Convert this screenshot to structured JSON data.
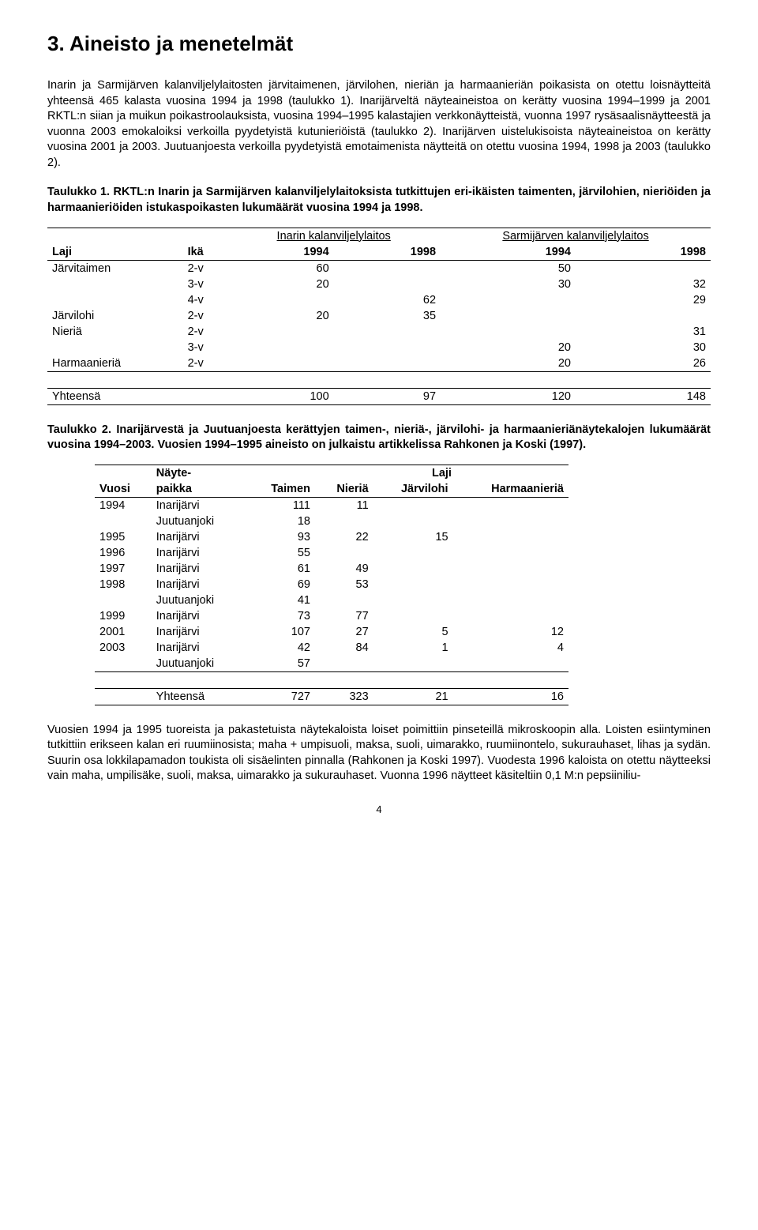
{
  "heading": "3. Aineisto ja menetelmät",
  "para1": "Inarin ja Sarmijärven kalanviljelylaitosten järvitaimenen, järvilohen, nieriän ja harmaanieriän poikasista on otettu loisnäytteitä yhteensä 465 kalasta vuosina 1994 ja 1998 (taulukko 1). Inarijärveltä näyteaineistoa on kerätty vuosina 1994–1999 ja 2001 RKTL:n siian ja muikun poikastroolauksista, vuosina 1994–1995 kalastajien verkkonäytteistä, vuonna 1997 rysäsaalisnäytteestä ja vuonna 2003 emokaloiksi verkoilla pyydetyistä kutunieriöistä (taulukko 2). Inarijärven uistelukisoista näyteaineistoa on kerätty vuosina 2001 ja 2003. Juutuanjoesta verkoilla pyydetyistä emotaimenista näytteitä on otettu vuosina 1994, 1998 ja 2003 (taulukko 2).",
  "table1_caption": "Taulukko 1. RKTL:n Inarin ja Sarmijärven kalanviljelylaitoksista tutkittujen eri-ikäisten taimenten, järvilohien, nieriöiden ja harmaanieriöiden istukaspoikasten lukumäärät vuosina 1994 ja 1998.",
  "table1": {
    "hatchery_labels": [
      "Inarin kalanviljelylaitos",
      "Sarmijärven kalanviljelylaitos"
    ],
    "col_labels": [
      "Laji",
      "Ikä",
      "1994",
      "1998",
      "1994",
      "1998"
    ],
    "rows": [
      {
        "laji": "Järvitaimen",
        "ika": "2-v",
        "v94i": "60",
        "v98i": "",
        "v94s": "50",
        "v98s": ""
      },
      {
        "laji": "",
        "ika": "3-v",
        "v94i": "20",
        "v98i": "",
        "v94s": "30",
        "v98s": "32"
      },
      {
        "laji": "",
        "ika": "4-v",
        "v94i": "",
        "v98i": "62",
        "v94s": "",
        "v98s": "29"
      },
      {
        "laji": "Järvilohi",
        "ika": "2-v",
        "v94i": "20",
        "v98i": "35",
        "v94s": "",
        "v98s": ""
      },
      {
        "laji": "Nieriä",
        "ika": "2-v",
        "v94i": "",
        "v98i": "",
        "v94s": "",
        "v98s": "31"
      },
      {
        "laji": "",
        "ika": "3-v",
        "v94i": "",
        "v98i": "",
        "v94s": "20",
        "v98s": "30"
      },
      {
        "laji": "Harmaanieriä",
        "ika": "2-v",
        "v94i": "",
        "v98i": "",
        "v94s": "20",
        "v98s": "26"
      }
    ],
    "total_label": "Yhteensä",
    "totals": {
      "v94i": "100",
      "v98i": "97",
      "v94s": "120",
      "v98s": "148"
    }
  },
  "table2_caption": "Taulukko 2. Inarijärvestä ja Juutuanjoesta kerättyjen taimen-, nieriä-, järvilohi- ja harmaanieriänäytekalojen lukumäärät vuosina 1994–2003. Vuosien 1994–1995 aineisto on julkaistu artikkelissa Rahkonen ja Koski (1997).",
  "table2": {
    "head_top": [
      "",
      "Näyte-",
      "",
      "Laji",
      "",
      ""
    ],
    "head_btm": [
      "Vuosi",
      "paikka",
      "Taimen",
      "Nieriä",
      "Järvilohi",
      "Harmaanieriä"
    ],
    "rows": [
      {
        "vuosi": "1994",
        "paikka": "Inarijärvi",
        "taimen": "111",
        "nieria": "11",
        "jl": "",
        "hm": ""
      },
      {
        "vuosi": "",
        "paikka": "Juutuanjoki",
        "taimen": "18",
        "nieria": "",
        "jl": "",
        "hm": ""
      },
      {
        "vuosi": "1995",
        "paikka": "Inarijärvi",
        "taimen": "93",
        "nieria": "22",
        "jl": "15",
        "hm": ""
      },
      {
        "vuosi": "1996",
        "paikka": "Inarijärvi",
        "taimen": "55",
        "nieria": "",
        "jl": "",
        "hm": ""
      },
      {
        "vuosi": "1997",
        "paikka": "Inarijärvi",
        "taimen": "61",
        "nieria": "49",
        "jl": "",
        "hm": ""
      },
      {
        "vuosi": "1998",
        "paikka": "Inarijärvi",
        "taimen": "69",
        "nieria": "53",
        "jl": "",
        "hm": ""
      },
      {
        "vuosi": "",
        "paikka": "Juutuanjoki",
        "taimen": "41",
        "nieria": "",
        "jl": "",
        "hm": ""
      },
      {
        "vuosi": "1999",
        "paikka": "Inarijärvi",
        "taimen": "73",
        "nieria": "77",
        "jl": "",
        "hm": ""
      },
      {
        "vuosi": "2001",
        "paikka": "Inarijärvi",
        "taimen": "107",
        "nieria": "27",
        "jl": "5",
        "hm": "12"
      },
      {
        "vuosi": "2003",
        "paikka": "Inarijärvi",
        "taimen": "42",
        "nieria": "84",
        "jl": "1",
        "hm": "4"
      },
      {
        "vuosi": "",
        "paikka": "Juutuanjoki",
        "taimen": "57",
        "nieria": "",
        "jl": "",
        "hm": ""
      }
    ],
    "total_label": "Yhteensä",
    "totals": {
      "taimen": "727",
      "nieria": "323",
      "jl": "21",
      "hm": "16"
    }
  },
  "para2": "Vuosien 1994 ja 1995 tuoreista ja pakastetuista näytekaloista loiset poimittiin pinseteillä mikroskoopin alla. Loisten esiintyminen tutkittiin erikseen kalan eri ruumiinosista; maha + umpisuoli, maksa, suoli, uimarakko, ruumiinontelo, sukurauhaset, lihas ja sydän. Suurin osa lokkilapamadon toukista oli sisäelinten pinnalla (Rahkonen ja Koski 1997). Vuodesta 1996 kaloista on otettu näytteeksi vain maha, umpilisäke, suoli, maksa, uimarakko ja sukurauhaset. Vuonna 1996 näytteet käsiteltiin 0,1 M:n pepsiiniliu-",
  "pagenum": "4"
}
